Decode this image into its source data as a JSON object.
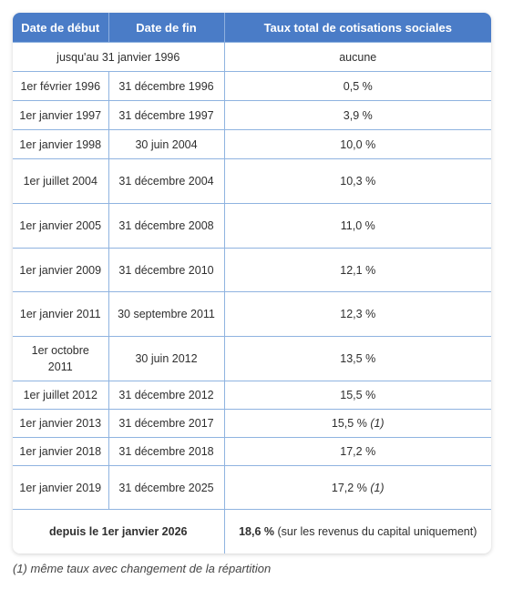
{
  "table": {
    "headers": [
      "Date de début",
      "Date de fin",
      "Taux total de cotisations sociales"
    ],
    "first_row": {
      "period": "jusqu'au 31 janvier 1996",
      "rate": "aucune"
    },
    "rows": [
      {
        "start": "1er février 1996",
        "end": "31 décembre 1996",
        "rate": "0,5 %",
        "note": ""
      },
      {
        "start": "1er janvier 1997",
        "end": "31 décembre 1997",
        "rate": "3,9 %",
        "note": ""
      },
      {
        "start": "1er janvier 1998",
        "end": "30 juin 2004",
        "rate": "10,0 %",
        "note": ""
      },
      {
        "start": "1er juillet 2004",
        "end": "31 décembre 2004",
        "rate": "10,3 %",
        "note": ""
      },
      {
        "start": "1er janvier 2005",
        "end": "31 décembre 2008",
        "rate": "11,0 %",
        "note": ""
      },
      {
        "start": "1er janvier 2009",
        "end": "31 décembre 2010",
        "rate": "12,1 %",
        "note": ""
      },
      {
        "start": "1er janvier 2011",
        "end": "30 septembre 2011",
        "rate": "12,3 %",
        "note": ""
      },
      {
        "start": "1er octobre 2011",
        "end": "30 juin 2012",
        "rate": "13,5 %",
        "note": ""
      },
      {
        "start": "1er juillet 2012",
        "end": "31 décembre 2012",
        "rate": "15,5 %",
        "note": ""
      },
      {
        "start": "1er janvier 2013",
        "end": "31 décembre 2017",
        "rate": "15,5 %",
        "note": "(1)"
      },
      {
        "start": "1er janvier 2018",
        "end": "31 décembre 2018",
        "rate": "17,2 %",
        "note": ""
      },
      {
        "start": "1er janvier 2019",
        "end": "31 décembre 2025",
        "rate": "17,2 %",
        "note": "(1)"
      }
    ],
    "last_row": {
      "period": "depuis le 1er janvier 2026",
      "rate_bold": "18,6 %",
      "rate_detail": "(sur les revenus du capital uniquement)"
    }
  },
  "footnote": "(1) même taux avec changement de la répartition",
  "colors": {
    "header_bg": "#4a7cc7",
    "border": "#8fb3e0"
  }
}
